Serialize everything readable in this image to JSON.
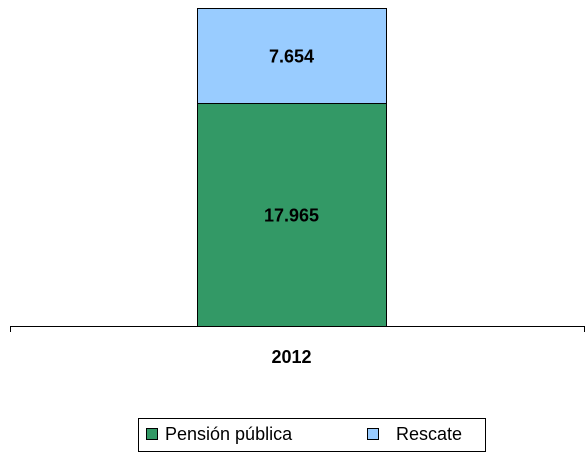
{
  "chart_data": {
    "type": "stacked_bar",
    "categories": [
      "2012"
    ],
    "series": [
      {
        "name": "Pensión pública",
        "color": "#339966",
        "values": [
          17965
        ],
        "value_labels": [
          "17.965"
        ]
      },
      {
        "name": "Rescate",
        "color": "#99ccff",
        "values": [
          7654
        ],
        "value_labels": [
          "7.654"
        ]
      }
    ]
  }
}
